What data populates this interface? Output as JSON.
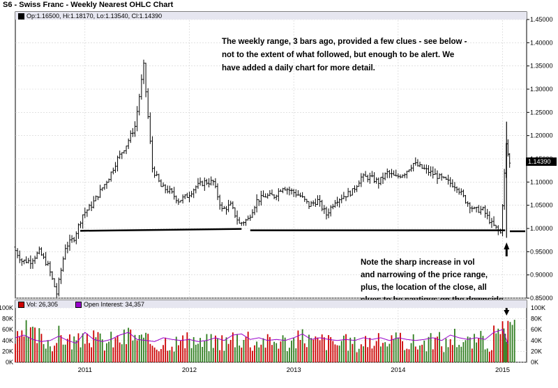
{
  "title": "S6 - Swiss Franc - Weekly Nearest OHLC Chart",
  "price_legend": "Op:1.16500, Hi:1.18170, Lo:1.13540, Cl:1.14390",
  "vol_legend": "Vol: 26,305",
  "oi_legend": "Open Interest: 34,357",
  "last_price_label": "1.14390",
  "annotation_top": [
    "The weekly range, 3 bars ago, provided a few clues - see below -",
    "not to the extent of what followed, but enough to be alert.  We",
    "have added a daily chart for more detail."
  ],
  "annotation_bottom": [
    "Note the sharp increase in vol",
    "and narrowing of the price range,",
    "plus, the location of the close, all",
    "clues to be cautious on the downside"
  ],
  "colors": {
    "price_bars": "#000000",
    "vol_up": "#2e7d1e",
    "vol_down": "#cc0000",
    "open_interest": "#9900cc",
    "legend_bg": "#e6e6f0",
    "grid": "#cfcfcf"
  },
  "chart_data": [
    {
      "type": "ohlc",
      "title": "S6 - Swiss Franc - Weekly Nearest OHLC Chart",
      "ylim": [
        0.85,
        1.45
      ],
      "y_ticks": [
        "0.85000",
        "0.90000",
        "0.95000",
        "1.00000",
        "1.05000",
        "1.10000",
        "1.15000",
        "1.20000",
        "1.25000",
        "1.30000",
        "1.35000",
        "1.40000",
        "1.45000"
      ],
      "x_ticks": [
        "2011",
        "2012",
        "2013",
        "2014",
        "2015"
      ],
      "x_range": [
        "2010-05",
        "2015-02"
      ],
      "support_level": 0.995,
      "close_path": [
        [
          "2010-05",
          0.96
        ],
        [
          "2010-06",
          0.93
        ],
        [
          "2010-07",
          0.93
        ],
        [
          "2010-08",
          0.95
        ],
        [
          "2010-09",
          0.92
        ],
        [
          "2010-10",
          0.86
        ],
        [
          "2010-11",
          0.96
        ],
        [
          "2010-12",
          0.98
        ],
        [
          "2011-01",
          1.03
        ],
        [
          "2011-02",
          1.05
        ],
        [
          "2011-03",
          1.08
        ],
        [
          "2011-04",
          1.11
        ],
        [
          "2011-05",
          1.15
        ],
        [
          "2011-06",
          1.18
        ],
        [
          "2011-07",
          1.22
        ],
        [
          "2011-08",
          1.35
        ],
        [
          "2011-09",
          1.13
        ],
        [
          "2011-10",
          1.09
        ],
        [
          "2011-11",
          1.08
        ],
        [
          "2011-12",
          1.06
        ],
        [
          "2012-01",
          1.07
        ],
        [
          "2012-02",
          1.09
        ],
        [
          "2012-03",
          1.1
        ],
        [
          "2012-04",
          1.1
        ],
        [
          "2012-05",
          1.04
        ],
        [
          "2012-06",
          1.05
        ],
        [
          "2012-07",
          1.01
        ],
        [
          "2012-08",
          1.02
        ],
        [
          "2012-09",
          1.06
        ],
        [
          "2012-10",
          1.07
        ],
        [
          "2012-11",
          1.07
        ],
        [
          "2012-12",
          1.09
        ],
        [
          "2013-01",
          1.08
        ],
        [
          "2013-02",
          1.07
        ],
        [
          "2013-03",
          1.05
        ],
        [
          "2013-04",
          1.06
        ],
        [
          "2013-05",
          1.03
        ],
        [
          "2013-06",
          1.06
        ],
        [
          "2013-07",
          1.07
        ],
        [
          "2013-08",
          1.08
        ],
        [
          "2013-09",
          1.11
        ],
        [
          "2013-10",
          1.11
        ],
        [
          "2013-11",
          1.1
        ],
        [
          "2013-12",
          1.12
        ],
        [
          "2014-01",
          1.11
        ],
        [
          "2014-02",
          1.12
        ],
        [
          "2014-03",
          1.14
        ],
        [
          "2014-04",
          1.13
        ],
        [
          "2014-05",
          1.12
        ],
        [
          "2014-06",
          1.11
        ],
        [
          "2014-07",
          1.1
        ],
        [
          "2014-08",
          1.09
        ],
        [
          "2014-09",
          1.06
        ],
        [
          "2014-10",
          1.04
        ],
        [
          "2014-11",
          1.04
        ],
        [
          "2014-12",
          1.01
        ],
        [
          "2015-01",
          0.99
        ],
        [
          "2015-01-20",
          1.18
        ],
        [
          "2015-02",
          1.14
        ]
      ]
    },
    {
      "type": "bar",
      "subtype": "volume_with_open_interest",
      "ylim": [
        0,
        100000
      ],
      "y_ticks_left": [
        "0K",
        "20K",
        "40K",
        "60K",
        "80K",
        "100K"
      ],
      "y_ticks_right": [
        "0K",
        "20K",
        "40K",
        "60K",
        "80K",
        "100K"
      ],
      "series": [
        {
          "name": "Vol: 26,305"
        },
        {
          "name": "Open Interest: 34,357"
        }
      ],
      "volume_monthly_peak": [
        60,
        80,
        70,
        60,
        55,
        70,
        60,
        55,
        75,
        60,
        55,
        60,
        65,
        75,
        60,
        55,
        50,
        60,
        55,
        55,
        60,
        50,
        55,
        60,
        55,
        70,
        70,
        55,
        60,
        55,
        60,
        55,
        60,
        70,
        55,
        60,
        55,
        50,
        55,
        50,
        60,
        55,
        60,
        55,
        60,
        55,
        50,
        55,
        60,
        50,
        70,
        60,
        55,
        60,
        55,
        70,
        80,
        80
      ],
      "open_interest_monthly": [
        45,
        50,
        42,
        38,
        40,
        48,
        40,
        35,
        55,
        42,
        38,
        42,
        50,
        55,
        42,
        40,
        38,
        45,
        42,
        40,
        42,
        38,
        40,
        45,
        40,
        50,
        52,
        42,
        45,
        40,
        42,
        40,
        45,
        52,
        42,
        45,
        42,
        40,
        42,
        40,
        45,
        42,
        45,
        40,
        45,
        42,
        40,
        42,
        45,
        40,
        50,
        45,
        42,
        45,
        42,
        55,
        60,
        34
      ]
    }
  ]
}
